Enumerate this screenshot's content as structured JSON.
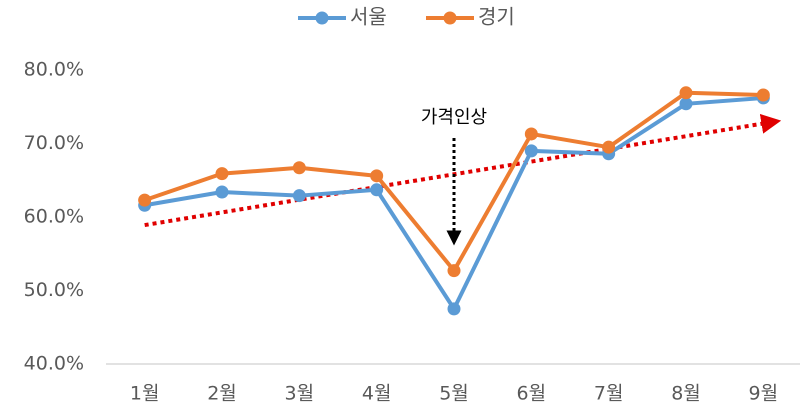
{
  "chart_data": {
    "type": "line",
    "categories": [
      "1월",
      "2월",
      "3월",
      "4월",
      "5월",
      "6월",
      "7월",
      "8월",
      "9월"
    ],
    "series": [
      {
        "name": "서울",
        "color": "#5b9bd5",
        "values": [
          61.6,
          63.4,
          62.9,
          63.7,
          47.5,
          69.0,
          68.6,
          75.4,
          76.2
        ]
      },
      {
        "name": "경기",
        "color": "#ed7d31",
        "values": [
          62.3,
          65.9,
          66.7,
          65.6,
          52.7,
          71.3,
          69.5,
          76.9,
          76.6
        ]
      }
    ],
    "ylim": [
      40,
      80
    ],
    "yticks": [
      {
        "value": 40,
        "label": "40.0%"
      },
      {
        "value": 50,
        "label": "50.0%"
      },
      {
        "value": 60,
        "label": "60.0%"
      },
      {
        "value": 70,
        "label": "70.0%"
      },
      {
        "value": 80,
        "label": "80.0%"
      }
    ],
    "legend": "top",
    "trendline": {
      "color": "#e00000",
      "start": 58.9,
      "end": 72.9
    },
    "annotation": {
      "text": "가격인상",
      "category": 4
    }
  }
}
